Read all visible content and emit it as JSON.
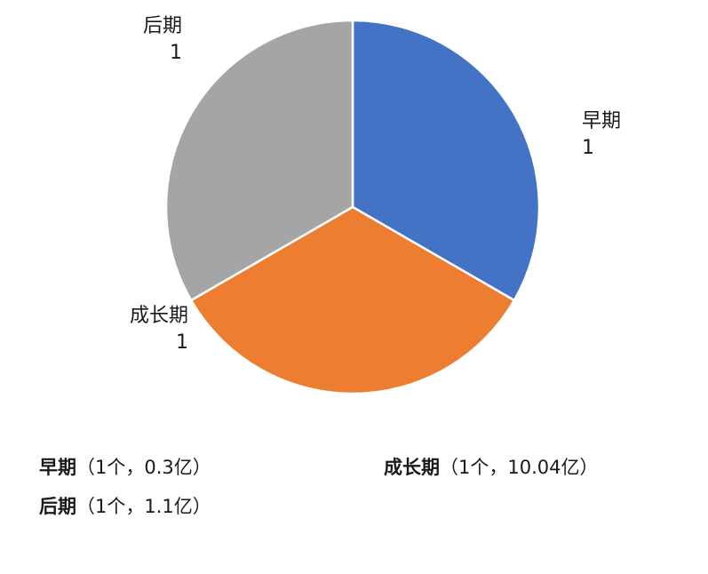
{
  "chart_data": {
    "type": "pie",
    "categories": [
      "早期",
      "成长期",
      "后期"
    ],
    "values": [
      1,
      1,
      1
    ],
    "colors": [
      "#4472C4",
      "#ED7D31",
      "#A5A5A5"
    ],
    "data_labels": [
      "1",
      "1",
      "1"
    ]
  },
  "notes": [
    {
      "category": "早期",
      "detail": "（1个，0.3亿）"
    },
    {
      "category": "成长期",
      "detail": "（1个，10.04亿）"
    },
    {
      "category": "后期",
      "detail": "（1个，1.1亿）"
    }
  ]
}
